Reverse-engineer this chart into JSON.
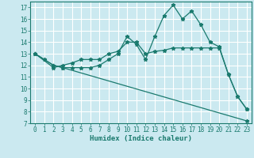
{
  "title": "",
  "xlabel": "Humidex (Indice chaleur)",
  "background_color": "#cbe9f0",
  "grid_color": "#ffffff",
  "line_color": "#1a7a6e",
  "xlim": [
    -0.5,
    23.5
  ],
  "ylim": [
    7,
    17.5
  ],
  "xticks": [
    0,
    1,
    2,
    3,
    4,
    5,
    6,
    7,
    8,
    9,
    10,
    11,
    12,
    13,
    14,
    15,
    16,
    17,
    18,
    19,
    20,
    21,
    22,
    23
  ],
  "yticks": [
    7,
    8,
    9,
    10,
    11,
    12,
    13,
    14,
    15,
    16,
    17
  ],
  "line1_x": [
    0,
    1,
    2,
    3,
    4,
    5,
    6,
    7,
    8,
    9,
    10,
    11,
    12,
    13,
    14,
    15,
    16,
    17,
    18,
    19,
    20,
    21,
    22,
    23
  ],
  "line1_y": [
    13.0,
    12.5,
    12.0,
    11.8,
    11.8,
    11.8,
    11.8,
    12.0,
    12.5,
    13.0,
    14.5,
    13.8,
    12.5,
    14.5,
    16.3,
    17.2,
    16.0,
    16.7,
    15.5,
    14.0,
    13.6,
    11.2,
    9.3,
    8.2
  ],
  "line2_x": [
    0,
    2,
    3,
    4,
    5,
    6,
    7,
    8,
    9,
    10,
    11,
    12,
    13,
    14,
    15,
    16,
    17,
    18,
    19,
    20,
    21,
    22,
    23
  ],
  "line2_y": [
    13.0,
    11.8,
    12.0,
    12.2,
    12.5,
    12.5,
    12.5,
    13.0,
    13.2,
    14.0,
    14.0,
    13.0,
    13.2,
    13.3,
    13.5,
    13.5,
    13.5,
    13.5,
    13.5,
    13.5,
    11.2,
    9.3,
    8.2
  ],
  "line3_x": [
    0,
    2,
    3,
    23
  ],
  "line3_y": [
    13.0,
    12.0,
    11.8,
    7.2
  ],
  "tick_fontsize": 5.5,
  "xlabel_fontsize": 6.5,
  "marker_size": 3.5,
  "linewidth": 0.9
}
